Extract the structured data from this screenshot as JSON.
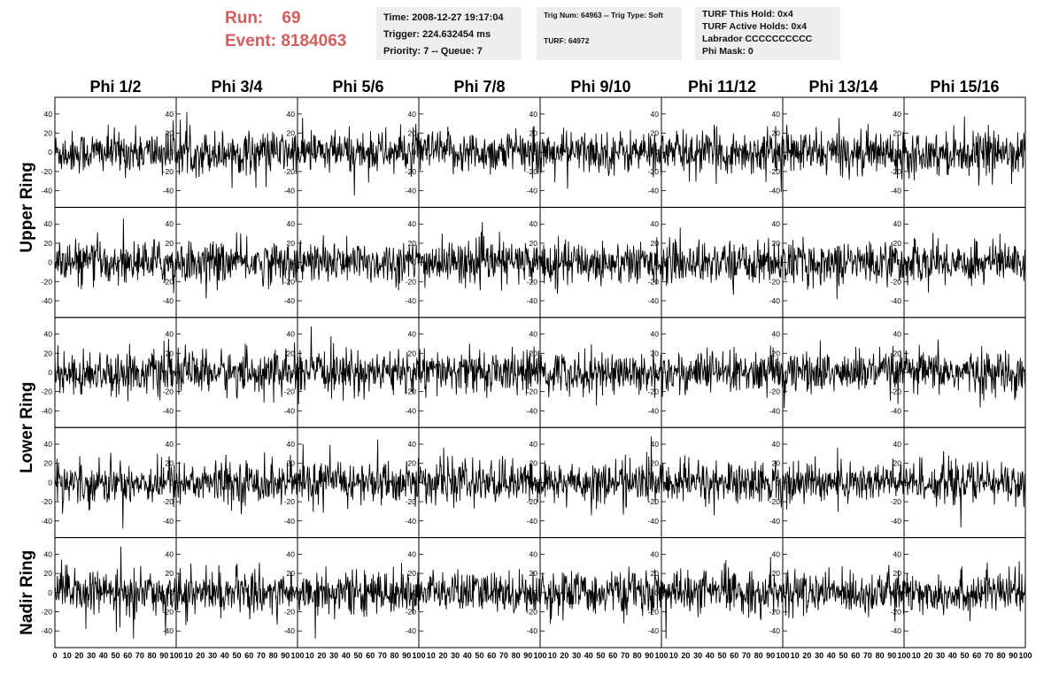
{
  "header": {
    "run_label": "Run:",
    "run_value": "69",
    "event_label": "Event:",
    "event_value": "8184063"
  },
  "info_box_1": {
    "time": "Time: 2008-12-27 19:17:04",
    "trigger": "Trigger: 224.632454 ms",
    "priority": "Priority: 7 -- Queue: 7"
  },
  "info_box_2": {
    "trig": "Trig Num: 64963 -- Trig Type: Soft",
    "turf": "TURF: 64972"
  },
  "info_box_3": {
    "this_hold": "TURF This Hold: 0x4",
    "active_holds": "TURF Active Holds: 0x4",
    "labrador": "Labrador CCCCCCCCCC",
    "phi_mask": "Phi Mask: 0"
  },
  "colors": {
    "header_red": "#d55c5c",
    "trace": "#000000",
    "info_bg": "#eeeeee"
  },
  "chart_data": {
    "type": "line",
    "columns": [
      "Phi 1/2",
      "Phi 3/4",
      "Phi 5/6",
      "Phi 7/8",
      "Phi 9/10",
      "Phi 11/12",
      "Phi 13/14",
      "Phi 15/16"
    ],
    "rows": [
      "Upper Ring",
      "Upper Ring",
      "Lower Ring",
      "Lower Ring",
      "Nadir Ring"
    ],
    "row_labels": [
      "Upper Ring",
      "Lower Ring",
      "Nadir Ring"
    ],
    "ylim": [
      -50,
      50
    ],
    "y_ticks": [
      -40,
      -20,
      0,
      20,
      40
    ],
    "y_ticks_nadir": [
      -40,
      -20,
      0,
      20,
      40
    ],
    "xlim": [
      0,
      100
    ],
    "x_ticks": [
      0,
      10,
      20,
      30,
      40,
      50,
      60,
      70,
      80,
      90,
      100
    ],
    "samples_per_trace": 240,
    "typical_amplitude": 20,
    "note_traces": "noise-like waveforms around 0 with peaks up to ~±40"
  }
}
